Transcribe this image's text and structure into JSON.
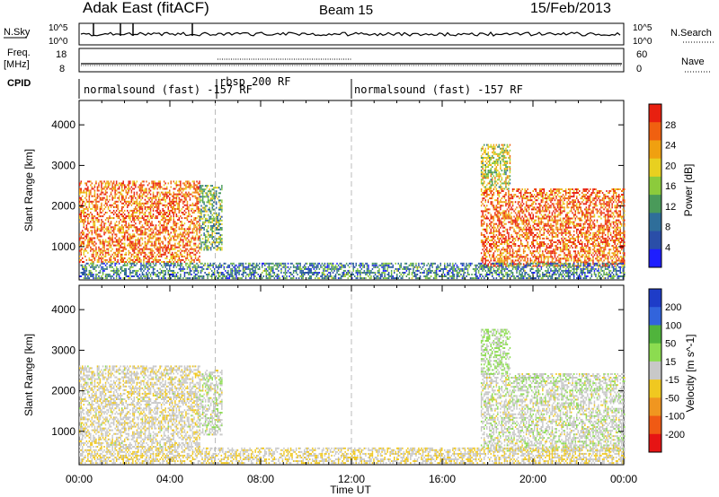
{
  "header": {
    "station": "Adak East (fitACF)",
    "beam": "Beam 15",
    "date": "15/Feb/2013"
  },
  "status_panels": {
    "nsky_label": "N.Sky",
    "nsky_ticks": [
      "10^5",
      "10^0"
    ],
    "nsearch_label": "N.Search",
    "freq_label_1": "Freq.",
    "freq_label_2": "[MHz]",
    "freq_ticks": [
      "18",
      "8"
    ],
    "nave_label": "Nave",
    "nave_ticks": [
      "60",
      "0"
    ],
    "cpid_label": "CPID",
    "cpid_segments": [
      {
        "label": "normalsound (fast) -157 RF",
        "start_h": 0,
        "end_h": 6
      },
      {
        "label": "rbsp 200 RF",
        "start_h": 6,
        "end_h": 12
      },
      {
        "label": "normalsound (fast) -157 RF",
        "start_h": 12,
        "end_h": 24
      }
    ]
  },
  "chart_data": [
    {
      "type": "heatmap",
      "name": "Power",
      "ylabel": "Slant Range [km]",
      "ylim": [
        180,
        4600
      ],
      "yticks": [
        1000,
        2000,
        3000,
        4000
      ],
      "xlim": [
        0,
        24
      ],
      "xticks": [
        "00:00",
        "04:00",
        "08:00",
        "12:00",
        "16:00",
        "20:00",
        "00:00"
      ],
      "colorbar": {
        "label": "Power [dB]",
        "range": [
          0,
          32
        ],
        "ticks": [
          "4",
          "8",
          "12",
          "16",
          "20",
          "24",
          "28"
        ],
        "colors": [
          "#1e1eff",
          "#2a4ea8",
          "#2f6e9a",
          "#4a9a5a",
          "#8ccb3c",
          "#e8d020",
          "#f0a010",
          "#f06010",
          "#e82010"
        ]
      },
      "regions": [
        {
          "t0": 0.0,
          "t1": 5.3,
          "r0": 600,
          "r1": 2600,
          "mean_db": 26
        },
        {
          "t0": 5.3,
          "t1": 6.3,
          "r0": 900,
          "r1": 2500,
          "mean_db": 14
        },
        {
          "t0": 17.7,
          "t1": 24.0,
          "r0": 500,
          "r1": 2400,
          "mean_db": 27
        },
        {
          "t0": 17.7,
          "t1": 19.0,
          "r0": 2400,
          "r1": 3500,
          "mean_db": 18
        },
        {
          "t0": 0.0,
          "t1": 24.0,
          "r0": 200,
          "r1": 600,
          "mean_db": 10
        }
      ]
    },
    {
      "type": "heatmap",
      "name": "Velocity",
      "ylabel": "Slant Range [km]",
      "ylim": [
        180,
        4600
      ],
      "yticks": [
        1000,
        2000,
        3000,
        4000
      ],
      "xlim": [
        0,
        24
      ],
      "xticks": [
        "00:00",
        "04:00",
        "08:00",
        "12:00",
        "16:00",
        "20:00",
        "00:00"
      ],
      "xlabel": "Time UT",
      "colorbar": {
        "label": "Velocity [m s^-1]",
        "range": [
          -250,
          250
        ],
        "ticks": [
          "200",
          "100",
          "50",
          "15",
          "-15",
          "-50",
          "-100",
          "-200"
        ],
        "colors": [
          "#1e3cc8",
          "#3264dc",
          "#50b43c",
          "#8cdc50",
          "#c8c8c8",
          "#f0c820",
          "#f09620",
          "#f05a14",
          "#e61414"
        ]
      },
      "regions": [
        {
          "t0": 0.0,
          "t1": 5.3,
          "r0": 600,
          "r1": 2600,
          "mean_v": -10
        },
        {
          "t0": 5.3,
          "t1": 6.3,
          "r0": 900,
          "r1": 2500,
          "mean_v": 5
        },
        {
          "t0": 17.7,
          "t1": 24.0,
          "r0": 500,
          "r1": 2400,
          "mean_v": 5
        },
        {
          "t0": 17.7,
          "t1": 19.0,
          "r0": 2400,
          "r1": 3500,
          "mean_v": 40
        },
        {
          "t0": 0.0,
          "t1": 24.0,
          "r0": 200,
          "r1": 600,
          "mean_v": -20
        }
      ]
    }
  ]
}
